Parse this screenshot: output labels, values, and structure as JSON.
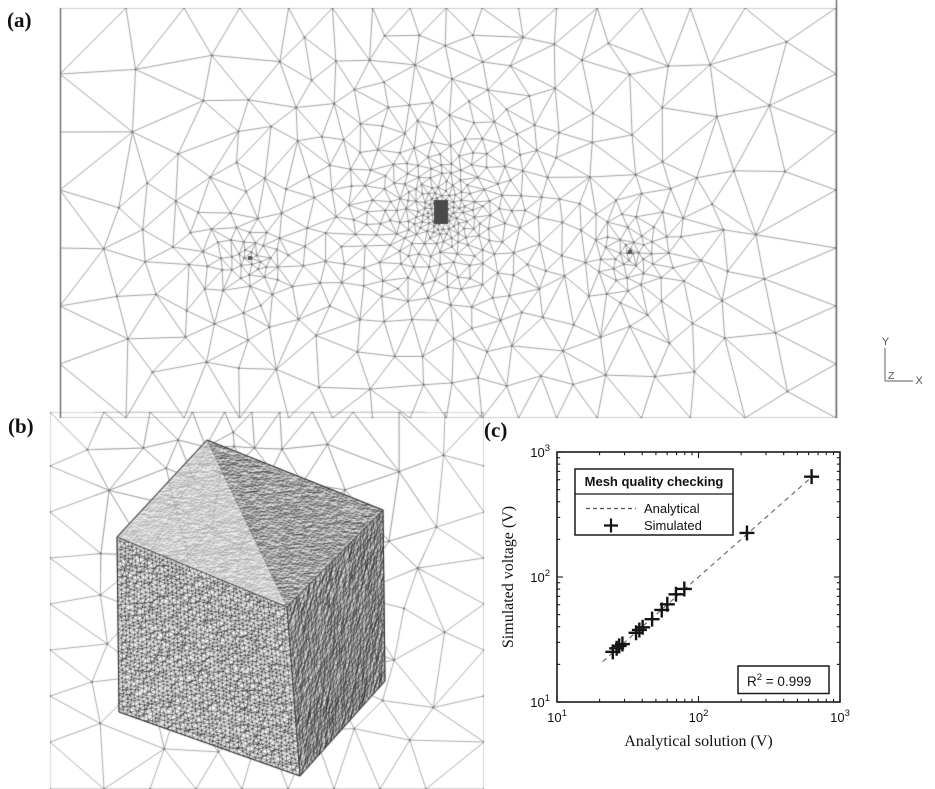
{
  "figure_labels": {
    "a": "(a)",
    "b": "(b)",
    "c": "(c)"
  },
  "panels": {
    "a": "2D cross-section of adaptive tetrahedral mesh with local refinement",
    "b": "3D finely meshed cube embedded in coarse volume mesh",
    "c": "Mesh quality validation plot"
  },
  "axis_triad": {
    "up": "Y",
    "right": "X",
    "depth": "Z"
  },
  "chart_data": {
    "type": "scatter",
    "title": "Mesh quality checking",
    "xlabel": "Analytical solution (V)",
    "ylabel": "Simulated voltage (V)",
    "xscale": "log",
    "yscale": "log",
    "xlim": [
      10,
      1000
    ],
    "ylim": [
      10,
      1000
    ],
    "grid": false,
    "tick_base": "10",
    "x_tick_exponents": [
      "1",
      "2",
      "3"
    ],
    "y_tick_exponents": [
      "1",
      "2",
      "3"
    ],
    "legend": {
      "title": "Mesh quality checking",
      "position": "top-left",
      "entries": [
        {
          "label": "Analytical",
          "style": "dashed-line"
        },
        {
          "label": "Simulated",
          "style": "plus-marker"
        }
      ]
    },
    "annotation": {
      "base": "R",
      "sup": "2",
      "rest": " = 0.999"
    },
    "series": [
      {
        "name": "Analytical",
        "type": "line",
        "style": "dashed",
        "points": [
          [
            21,
            21
          ],
          [
            640,
            640
          ]
        ]
      },
      {
        "name": "Simulated",
        "type": "scatter",
        "marker": "plus",
        "points": [
          [
            24.8,
            25.2
          ],
          [
            26.4,
            26.9
          ],
          [
            27.5,
            28.1
          ],
          [
            29.0,
            29.1
          ],
          [
            36.2,
            35.8
          ],
          [
            38.2,
            37.7
          ],
          [
            40.3,
            39.6
          ],
          [
            47.0,
            46.0
          ],
          [
            55.0,
            54.5
          ],
          [
            60.2,
            60.5
          ],
          [
            69.3,
            72.7
          ],
          [
            79.4,
            80.2
          ],
          [
            220,
            225
          ],
          [
            630,
            635
          ]
        ]
      }
    ]
  }
}
